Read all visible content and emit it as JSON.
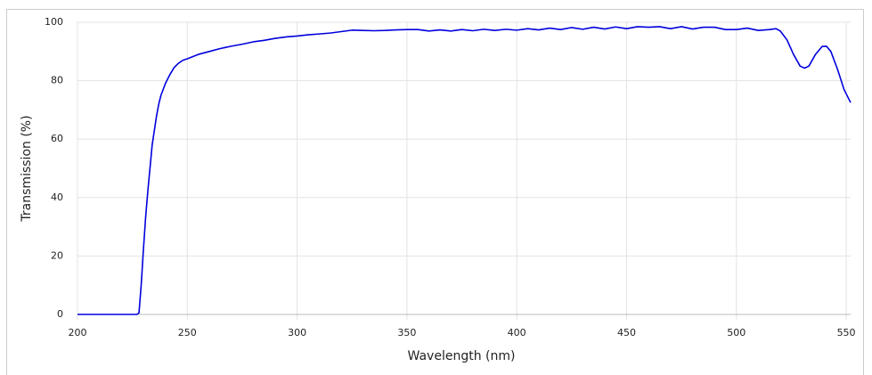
{
  "chart_data": {
    "type": "line",
    "x_label": "Wavelength (nm)",
    "y_label": "Transmission (%)",
    "x": [
      200,
      210,
      220,
      227,
      228,
      229,
      230,
      231,
      232,
      233,
      234,
      235,
      236,
      237,
      238,
      240,
      242,
      244,
      246,
      248,
      250,
      255,
      260,
      265,
      270,
      275,
      280,
      285,
      290,
      295,
      300,
      305,
      310,
      315,
      320,
      325,
      330,
      335,
      340,
      345,
      350,
      355,
      360,
      365,
      370,
      375,
      380,
      385,
      390,
      395,
      400,
      405,
      410,
      415,
      420,
      425,
      430,
      435,
      440,
      445,
      450,
      455,
      460,
      465,
      470,
      475,
      480,
      485,
      490,
      495,
      500,
      505,
      510,
      515,
      518,
      520,
      523,
      526,
      529,
      531,
      533,
      536,
      539,
      541,
      543,
      546,
      549,
      552
    ],
    "series": [
      {
        "name": "Transmission",
        "color": "#0000dd",
        "values": [
          0,
          0,
          0,
          0,
          0.5,
          10,
          22,
          33,
          42,
          50,
          58,
          63,
          68,
          72,
          75,
          79,
          82,
          84.5,
          86,
          87,
          87.5,
          89,
          90,
          91,
          91.8,
          92.5,
          93.3,
          93.8,
          94.5,
          95,
          95.3,
          95.7,
          96,
          96.3,
          96.8,
          97.3,
          97.2,
          97.1,
          97.2,
          97.4,
          97.5,
          97.5,
          97,
          97.4,
          97,
          97.5,
          97.1,
          97.6,
          97.2,
          97.6,
          97.3,
          97.8,
          97.4,
          98,
          97.5,
          98.2,
          97.6,
          98.3,
          97.7,
          98.4,
          97.8,
          98.5,
          98.3,
          98.5,
          97.8,
          98.5,
          97.7,
          98.3,
          98.3,
          97.5,
          97.5,
          98,
          97.2,
          97.5,
          97.8,
          97,
          94,
          89,
          85,
          84.3,
          85,
          89,
          91.7,
          91.8,
          90,
          84,
          77,
          72.5
        ]
      }
    ],
    "xlim": [
      200,
      552
    ],
    "ylim": [
      0,
      100
    ],
    "xticks": [
      200,
      250,
      300,
      350,
      400,
      450,
      500,
      550
    ],
    "yticks": [
      0,
      20,
      40,
      60,
      80,
      100
    ],
    "grid": true
  }
}
